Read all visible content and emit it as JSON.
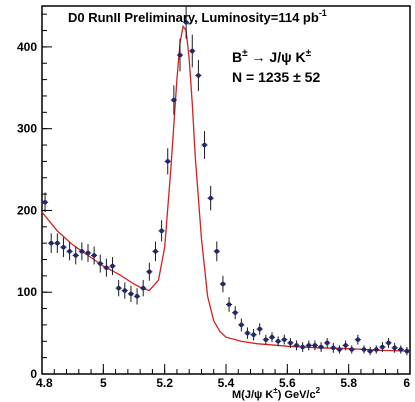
{
  "chart_data": {
    "type": "scatter",
    "title": "D0 RunII  Preliminary, Luminosity=114 pb",
    "title_sup": "-1",
    "annotations": {
      "decay": {
        "B": "B",
        "pm1": "±",
        "arrow": " → J/ψ K",
        "pm2": "±"
      },
      "yield": "N =  1235 ± 52"
    },
    "xlabel": "M(J/ψ K",
    "xlabel_sup": "±",
    "xlabel_tail": ") GeV/c",
    "xlabel_sup2": "2",
    "xlim": [
      4.8,
      6.0
    ],
    "ylim": [
      0,
      450
    ],
    "xticks": [
      "4.8",
      "5",
      "5.2",
      "5.4",
      "5.6",
      "5.8",
      "6"
    ],
    "yticks": [
      "0",
      "100",
      "200",
      "300",
      "400"
    ],
    "grid": false,
    "series": [
      {
        "type": "points",
        "color": "#22286e",
        "x": [
          4.81,
          4.83,
          4.85,
          4.87,
          4.89,
          4.91,
          4.93,
          4.95,
          4.97,
          4.99,
          5.01,
          5.03,
          5.05,
          5.07,
          5.09,
          5.11,
          5.13,
          5.15,
          5.17,
          5.19,
          5.21,
          5.23,
          5.25,
          5.27,
          5.29,
          5.31,
          5.33,
          5.35,
          5.37,
          5.39,
          5.41,
          5.43,
          5.45,
          5.47,
          5.49,
          5.51,
          5.53,
          5.55,
          5.57,
          5.59,
          5.61,
          5.63,
          5.65,
          5.67,
          5.69,
          5.71,
          5.73,
          5.75,
          5.77,
          5.79,
          5.81,
          5.83,
          5.85,
          5.87,
          5.89,
          5.91,
          5.93,
          5.95,
          5.97,
          5.99
        ],
        "y": [
          210,
          160,
          160,
          155,
          150,
          145,
          150,
          148,
          145,
          135,
          130,
          132,
          105,
          102,
          98,
          95,
          105,
          125,
          150,
          175,
          260,
          335,
          390,
          430,
          395,
          365,
          280,
          215,
          150,
          110,
          85,
          75,
          60,
          50,
          48,
          55,
          42,
          45,
          40,
          42,
          38,
          35,
          33,
          35,
          35,
          33,
          38,
          32,
          30,
          35,
          30,
          42,
          30,
          28,
          30,
          33,
          38,
          32,
          30,
          28
        ],
        "err": [
          12,
          12,
          12,
          12,
          11,
          11,
          11,
          11,
          11,
          11,
          11,
          11,
          10,
          10,
          10,
          10,
          10,
          11,
          12,
          13,
          16,
          18,
          20,
          20,
          20,
          19,
          17,
          15,
          12,
          10,
          9,
          8,
          8,
          7,
          7,
          7,
          6,
          6,
          6,
          6,
          6,
          6,
          6,
          6,
          6,
          6,
          6,
          6,
          5,
          6,
          5,
          6,
          5,
          5,
          5,
          6,
          6,
          6,
          5,
          5
        ]
      },
      {
        "type": "fit",
        "color": "#d42020",
        "x": [
          4.8,
          4.85,
          4.9,
          4.95,
          5.0,
          5.05,
          5.1,
          5.12,
          5.15,
          5.18,
          5.2,
          5.22,
          5.24,
          5.25,
          5.26,
          5.27,
          5.28,
          5.29,
          5.3,
          5.32,
          5.34,
          5.36,
          5.38,
          5.4,
          5.45,
          5.5,
          5.6,
          5.7,
          5.8,
          5.9,
          6.0
        ],
        "y": [
          198,
          175,
          158,
          145,
          132,
          122,
          110,
          106,
          102,
          115,
          155,
          250,
          360,
          405,
          425,
          420,
          385,
          330,
          265,
          165,
          95,
          65,
          52,
          45,
          40,
          37,
          34,
          32,
          31,
          29,
          28
        ]
      }
    ]
  }
}
